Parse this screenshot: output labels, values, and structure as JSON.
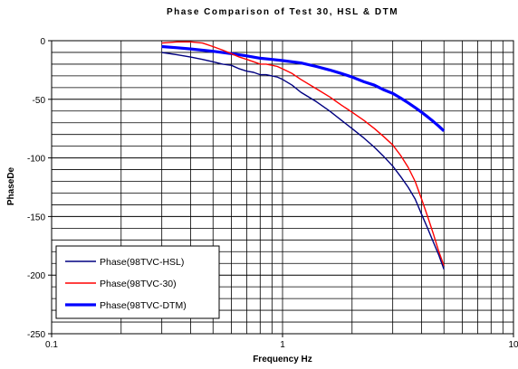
{
  "chart_data": {
    "type": "line",
    "title": "Phase Comparison of Test 30, HSL & DTM",
    "xlabel": "Frequency Hz",
    "ylabel": "PhaseDe",
    "x_scale": "log",
    "xlim": [
      0.1,
      10
    ],
    "ylim": [
      -250,
      0
    ],
    "x_tick_labels": [
      "0.1",
      "1",
      "10"
    ],
    "y_tick_labels": [
      "0",
      "-50",
      "-100",
      "-150",
      "-200",
      "-250"
    ],
    "grid": true,
    "legend_position": "bottom-left",
    "series": [
      {
        "name": "Phase(98TVC-HSL)",
        "color": "#000080",
        "x": [
          0.3,
          0.35,
          0.4,
          0.45,
          0.5,
          0.55,
          0.6,
          0.65,
          0.7,
          0.75,
          0.8,
          0.85,
          0.9,
          0.95,
          1.0,
          1.1,
          1.2,
          1.4,
          1.6,
          1.8,
          2.0,
          2.25,
          2.5,
          2.75,
          3.0,
          3.25,
          3.5,
          3.75,
          4.0,
          4.25,
          4.5,
          4.75,
          5.0
        ],
        "y": [
          -10,
          -12,
          -14,
          -16,
          -18,
          -20,
          -21,
          -24,
          -26,
          -27,
          -29,
          -29,
          -30,
          -31,
          -33,
          -38,
          -44,
          -52,
          -60,
          -68,
          -75,
          -83,
          -91,
          -99,
          -107,
          -116,
          -125,
          -135,
          -148,
          -160,
          -172,
          -183,
          -195
        ]
      },
      {
        "name": "Phase(98TVC-30)",
        "color": "#ff0000",
        "x": [
          0.3,
          0.35,
          0.4,
          0.45,
          0.5,
          0.55,
          0.6,
          0.65,
          0.7,
          0.75,
          0.8,
          0.85,
          0.9,
          0.95,
          1.0,
          1.1,
          1.2,
          1.4,
          1.6,
          1.8,
          2.0,
          2.25,
          2.5,
          2.75,
          3.0,
          3.25,
          3.5,
          3.75,
          4.0,
          4.25,
          4.5,
          4.75,
          5.0
        ],
        "y": [
          -2,
          -1,
          -1,
          -2,
          -5,
          -8,
          -11,
          -14,
          -16,
          -18,
          -20,
          -20,
          -21,
          -22,
          -24,
          -28,
          -33,
          -41,
          -48,
          -55,
          -61,
          -68,
          -75,
          -82,
          -89,
          -98,
          -108,
          -120,
          -135,
          -150,
          -165,
          -180,
          -192
        ]
      },
      {
        "name": "Phase(98TVC-DTM)",
        "color": "#0000ff",
        "x": [
          0.3,
          0.35,
          0.4,
          0.5,
          0.6,
          0.7,
          0.8,
          0.9,
          1.0,
          1.2,
          1.4,
          1.6,
          1.8,
          2.0,
          2.25,
          2.5,
          2.75,
          3.0,
          3.25,
          3.5,
          3.75,
          4.0,
          4.25,
          4.5,
          4.75,
          5.0
        ],
        "y": [
          -5,
          -6,
          -7,
          -9,
          -11,
          -13,
          -15,
          -16,
          -17,
          -19,
          -22,
          -25,
          -28,
          -31,
          -35,
          -38,
          -42,
          -45,
          -49,
          -53,
          -57,
          -61,
          -65,
          -69,
          -73,
          -77
        ]
      }
    ]
  }
}
